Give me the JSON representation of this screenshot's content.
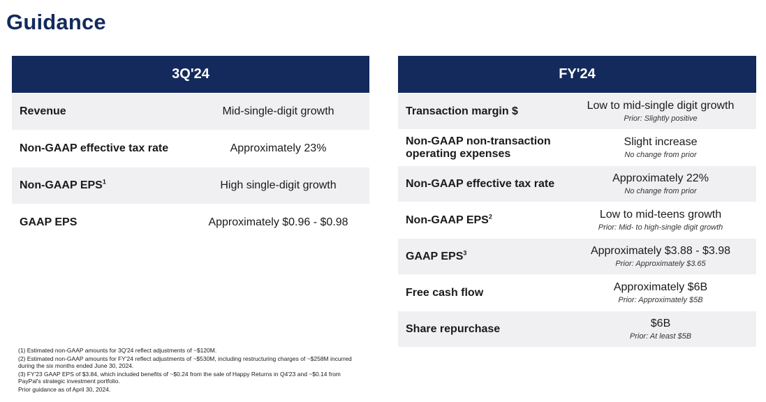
{
  "page": {
    "title": "Guidance"
  },
  "left_table": {
    "header": "3Q'24",
    "rows": [
      {
        "label": "Revenue",
        "sup": "",
        "value": "Mid-single-digit growth"
      },
      {
        "label": "Non-GAAP effective tax rate",
        "sup": "",
        "value": "Approximately 23%"
      },
      {
        "label": "Non-GAAP EPS",
        "sup": "1",
        "value": "High single-digit growth"
      },
      {
        "label": "GAAP EPS",
        "sup": "",
        "value": "Approximately $0.96 - $0.98"
      }
    ]
  },
  "right_table": {
    "header": "FY'24",
    "rows": [
      {
        "label": "Transaction margin $",
        "sup": "",
        "value": "Low to mid-single digit growth",
        "note": "Prior: Slightly positive"
      },
      {
        "label": "Non-GAAP non-transaction operating expenses",
        "sup": "",
        "value": "Slight increase",
        "note": "No change from prior"
      },
      {
        "label": "Non-GAAP effective tax rate",
        "sup": "",
        "value": "Approximately 22%",
        "note": "No change from prior"
      },
      {
        "label": "Non-GAAP EPS",
        "sup": "2",
        "value": "Low to mid-teens growth",
        "note": "Prior: Mid- to high-single digit growth"
      },
      {
        "label": "GAAP EPS",
        "sup": "3",
        "value": "Approximately $3.88 - $3.98",
        "note": "Prior: Approximately $3.65"
      },
      {
        "label": "Free cash flow",
        "sup": "",
        "value": "Approximately $6B",
        "note": "Prior: Approximately $5B"
      },
      {
        "label": "Share repurchase",
        "sup": "",
        "value": "$6B",
        "note": "Prior: At least $5B"
      }
    ]
  },
  "footnotes": [
    "(1) Estimated non-GAAP amounts for 3Q'24 reflect adjustments of ~$120M.",
    "(2) Estimated non-GAAP amounts for FY'24 reflect adjustments of ~$530M, including restructuring charges of ~$258M incurred during the six months ended June 30, 2024.",
    "(3) FY'23 GAAP EPS of $3.84, which included benefits of ~$0.24 from the sale of Happy Returns in Q4'23 and ~$0.14 from PayPal's strategic investment portfolio.",
    "Prior guidance as of April 30, 2024."
  ]
}
